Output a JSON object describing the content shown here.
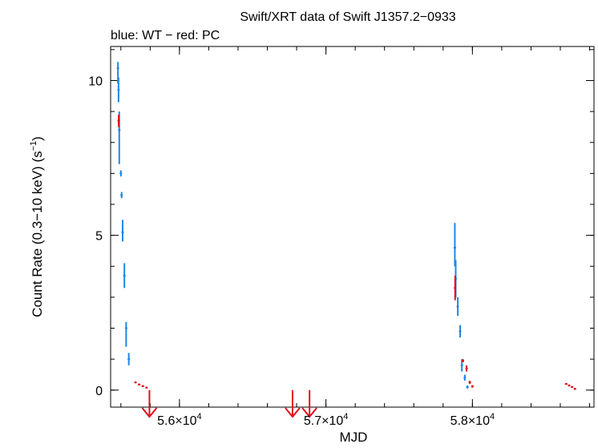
{
  "chart_data": {
    "type": "scatter",
    "title": "Swift/XRT data of Swift J1357.2−0933",
    "subtitle": "blue: WT − red: PC",
    "xlabel": "MJD",
    "ylabel": "Count Rate (0.3−10 keV) (s",
    "ylabel_sup": "−1",
    "ylabel_close": ")",
    "xlim": [
      55530,
      58830
    ],
    "ylim": [
      -0.55,
      11.1
    ],
    "x_ticks": [
      {
        "value": 56000,
        "label": "5.6×10",
        "exp": "4"
      },
      {
        "value": 57000,
        "label": "5.7×10",
        "exp": "4"
      },
      {
        "value": 58000,
        "label": "5.8×10",
        "exp": "4"
      }
    ],
    "y_ticks": [
      {
        "value": 0,
        "label": "0"
      },
      {
        "value": 5,
        "label": "5"
      },
      {
        "value": 10,
        "label": "10"
      }
    ],
    "colors": {
      "WT": "#1e88e5",
      "PC": "#e01020",
      "axes": "#000000"
    },
    "series": [
      {
        "mode": "WT",
        "points": [
          {
            "x": 55580,
            "y": 10.4,
            "ylo": 9.9,
            "yhi": 10.6
          },
          {
            "x": 55584,
            "y": 9.7,
            "ylo": 9.3,
            "yhi": 10.1
          },
          {
            "x": 55589,
            "y": 8.4,
            "ylo": 7.3,
            "yhi": 9.0
          },
          {
            "x": 55600,
            "y": 7.0,
            "ylo": 6.9,
            "yhi": 7.1
          },
          {
            "x": 55605,
            "y": 6.3,
            "ylo": 6.2,
            "yhi": 6.4
          },
          {
            "x": 55612,
            "y": 5.1,
            "ylo": 4.8,
            "yhi": 5.5
          },
          {
            "x": 55624,
            "y": 3.7,
            "ylo": 3.3,
            "yhi": 4.1
          },
          {
            "x": 55636,
            "y": 2.0,
            "ylo": 1.4,
            "yhi": 2.2
          },
          {
            "x": 55654,
            "y": 1.0,
            "ylo": 0.8,
            "yhi": 1.2
          },
          {
            "x": 57880,
            "y": 4.6,
            "ylo": 4.0,
            "yhi": 5.4
          },
          {
            "x": 57886,
            "y": 3.6,
            "ylo": 3.0,
            "yhi": 4.2
          },
          {
            "x": 57900,
            "y": 2.7,
            "ylo": 2.4,
            "yhi": 3.0
          },
          {
            "x": 57916,
            "y": 1.9,
            "ylo": 1.7,
            "yhi": 2.1
          },
          {
            "x": 57928,
            "y": 0.8,
            "ylo": 0.6,
            "yhi": 1.0
          },
          {
            "x": 57948,
            "y": 0.4,
            "ylo": 0.3,
            "yhi": 0.5
          },
          {
            "x": 57966,
            "y": 0.1,
            "ylo": 0.05,
            "yhi": 0.15
          }
        ]
      },
      {
        "mode": "PC",
        "points": [
          {
            "x": 55585,
            "y": 8.7,
            "ylo": 8.5,
            "yhi": 8.9
          },
          {
            "x": 55700,
            "y": 0.25,
            "ylo": 0.22,
            "yhi": 0.28
          },
          {
            "x": 55725,
            "y": 0.18,
            "ylo": 0.15,
            "yhi": 0.21
          },
          {
            "x": 55750,
            "y": 0.13,
            "ylo": 0.1,
            "yhi": 0.16
          },
          {
            "x": 55775,
            "y": 0.08,
            "ylo": 0.05,
            "yhi": 0.11
          },
          {
            "x": 57882,
            "y": 3.3,
            "ylo": 2.9,
            "yhi": 3.7
          },
          {
            "x": 57935,
            "y": 0.95,
            "ylo": 0.9,
            "yhi": 1.0
          },
          {
            "x": 57960,
            "y": 0.7,
            "ylo": 0.6,
            "yhi": 0.8
          },
          {
            "x": 57982,
            "y": 0.25,
            "ylo": 0.2,
            "yhi": 0.3
          },
          {
            "x": 58000,
            "y": 0.12,
            "ylo": 0.08,
            "yhi": 0.16
          },
          {
            "x": 58640,
            "y": 0.2,
            "ylo": 0.17,
            "yhi": 0.23
          },
          {
            "x": 58660,
            "y": 0.15,
            "ylo": 0.12,
            "yhi": 0.18
          },
          {
            "x": 58680,
            "y": 0.1,
            "ylo": 0.07,
            "yhi": 0.13
          },
          {
            "x": 58700,
            "y": 0.04,
            "ylo": 0.01,
            "yhi": 0.07
          }
        ]
      }
    ],
    "upper_limits": [
      {
        "x": 55795,
        "y": 0.0
      },
      {
        "x": 56772,
        "y": 0.0
      },
      {
        "x": 56888,
        "y": 0.0
      }
    ]
  }
}
